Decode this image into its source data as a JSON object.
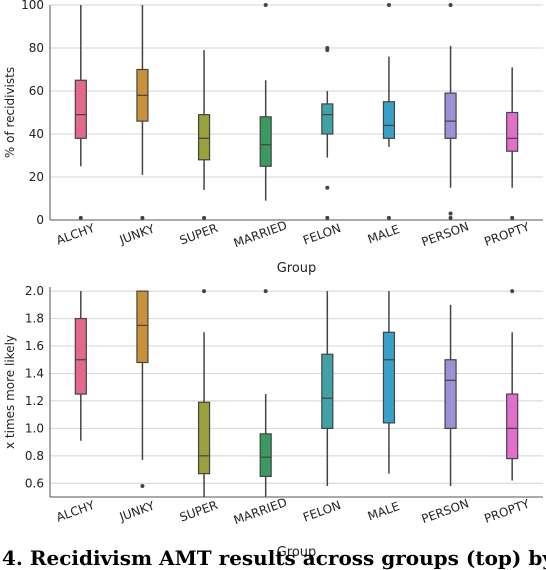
{
  "caption": "4. Recidivism AMT results across groups (top) by",
  "chart_data": [
    {
      "type": "box",
      "xlabel": "Group",
      "ylabel": "% of recidivists",
      "ylim": [
        0,
        100
      ],
      "yticks": [
        0,
        20,
        40,
        60,
        80,
        100
      ],
      "grid": true,
      "categories": [
        "ALCHY",
        "JUNKY",
        "SUPER",
        "MARRIED",
        "FELON",
        "MALE",
        "PERSON",
        "PROPTY"
      ],
      "colors": [
        "#e36a8c",
        "#c9913a",
        "#99a03c",
        "#3a9a62",
        "#40a1a6",
        "#39a0c9",
        "#9c91d6",
        "#e36fcd"
      ],
      "boxes": [
        {
          "min": 25,
          "q1": 38,
          "median": 49,
          "q3": 65,
          "max": 100,
          "outliers": [
            1
          ]
        },
        {
          "min": 21,
          "q1": 46,
          "median": 58,
          "q3": 70,
          "max": 100,
          "outliers": [
            1
          ]
        },
        {
          "min": 14,
          "q1": 28,
          "median": 38,
          "q3": 49,
          "max": 79,
          "outliers": [
            1
          ]
        },
        {
          "min": 9,
          "q1": 25,
          "median": 35,
          "q3": 48,
          "max": 65,
          "outliers": [
            100
          ]
        },
        {
          "min": 29,
          "q1": 40,
          "median": 49,
          "q3": 54,
          "max": 60,
          "outliers": [
            80,
            79,
            15,
            1
          ]
        },
        {
          "min": 34,
          "q1": 38,
          "median": 44,
          "q3": 55,
          "max": 76,
          "outliers": [
            100,
            1
          ]
        },
        {
          "min": 15,
          "q1": 38,
          "median": 46,
          "q3": 59,
          "max": 81,
          "outliers": [
            100,
            3,
            1
          ]
        },
        {
          "min": 15,
          "q1": 32,
          "median": 38,
          "q3": 50,
          "max": 71,
          "outliers": [
            1
          ]
        }
      ]
    },
    {
      "type": "box",
      "xlabel": "Group",
      "ylabel": "x times more likely",
      "ylim": [
        0.5,
        2.03
      ],
      "yticks": [
        0.6,
        0.8,
        1.0,
        1.2,
        1.4,
        1.6,
        1.8,
        2.0
      ],
      "ytick_labels": [
        "0.6",
        "0.8",
        "1.0",
        "1.2",
        "1.4",
        "1.6",
        "1.8",
        "2.0"
      ],
      "grid": true,
      "categories": [
        "ALCHY",
        "JUNKY",
        "SUPER",
        "MARRIED",
        "FELON",
        "MALE",
        "PERSON",
        "PROPTY"
      ],
      "colors": [
        "#e36a8c",
        "#c9913a",
        "#99a03c",
        "#3a9a62",
        "#40a1a6",
        "#39a0c9",
        "#9c91d6",
        "#e36fcd"
      ],
      "boxes": [
        {
          "min": 0.91,
          "q1": 1.25,
          "median": 1.5,
          "q3": 1.8,
          "max": 2.0,
          "outliers": []
        },
        {
          "min": 0.77,
          "q1": 1.48,
          "median": 1.75,
          "q3": 2.0,
          "max": 2.0,
          "outliers": [
            0.58
          ]
        },
        {
          "min": 0.5,
          "q1": 0.67,
          "median": 0.8,
          "q3": 1.19,
          "max": 1.7,
          "outliers": [
            2.0
          ]
        },
        {
          "min": 0.5,
          "q1": 0.65,
          "median": 0.79,
          "q3": 0.96,
          "max": 1.25,
          "outliers": [
            2.0
          ]
        },
        {
          "min": 0.58,
          "q1": 1.0,
          "median": 1.22,
          "q3": 1.54,
          "max": 2.0,
          "outliers": []
        },
        {
          "min": 0.67,
          "q1": 1.04,
          "median": 1.5,
          "q3": 1.7,
          "max": 2.0,
          "outliers": []
        },
        {
          "min": 0.58,
          "q1": 1.0,
          "median": 1.35,
          "q3": 1.5,
          "max": 1.9,
          "outliers": []
        },
        {
          "min": 0.62,
          "q1": 0.78,
          "median": 1.0,
          "q3": 1.25,
          "max": 1.7,
          "outliers": [
            2.0
          ]
        }
      ]
    }
  ]
}
